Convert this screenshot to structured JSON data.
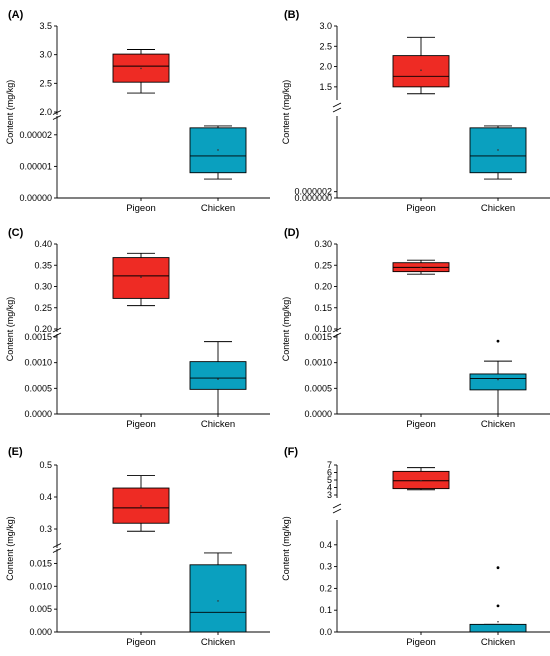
{
  "colors": {
    "pigeon": "#ee2b24",
    "chicken": "#0aa0bf",
    "axis": "#000000"
  },
  "chart_data": [
    {
      "panel": "(A)",
      "type": "box",
      "ylabel": "Content (mg/kg)",
      "axis_break": true,
      "categories": [
        "Pigeon",
        "Chicken"
      ],
      "upper": {
        "ylim": [
          2.0,
          3.5
        ],
        "ticks": [
          "2.0",
          "2.5",
          "3.0",
          "3.5"
        ]
      },
      "lower": {
        "ylim": [
          0,
          2.5e-05
        ],
        "ticks": [
          "0.00000",
          "0.00001",
          "0.00002"
        ]
      },
      "boxes": [
        {
          "category": "Pigeon",
          "segment": "upper",
          "min": 2.33,
          "q1": 2.52,
          "median": 2.8,
          "q3": 3.01,
          "max": 3.09,
          "mean": 2.76
        },
        {
          "category": "Chicken",
          "segment": "lower",
          "min": 6e-06,
          "q1": 8e-06,
          "median": 1.33e-05,
          "q3": 2.22e-05,
          "max": 2.28e-05,
          "mean": 1.52e-05
        }
      ]
    },
    {
      "panel": "(B)",
      "type": "box",
      "ylabel": "Content (mg/kg)",
      "axis_break": true,
      "categories": [
        "Pigeon",
        "Chicken"
      ],
      "upper": {
        "ylim": [
          1.25,
          3.0
        ],
        "ticks": [
          "1.5",
          "2.0",
          "2.5",
          "3.0"
        ]
      },
      "lower": {
        "ylim": [
          0,
          2.5e-05
        ],
        "ticks": [
          "0.000000",
          "0.000002"
        ]
      },
      "boxes": [
        {
          "category": "Pigeon",
          "segment": "upper",
          "min": 1.33,
          "q1": 1.5,
          "median": 1.76,
          "q3": 2.27,
          "max": 2.72,
          "mean": 1.91
        },
        {
          "category": "Chicken",
          "segment": "lower",
          "min": 6e-06,
          "q1": 8e-06,
          "median": 1.33e-05,
          "q3": 2.22e-05,
          "max": 2.28e-05,
          "mean": 1.52e-05
        }
      ]
    },
    {
      "panel": "(C)",
      "type": "box",
      "ylabel": "Content (mg/kg)",
      "axis_break": true,
      "categories": [
        "Pigeon",
        "Chicken"
      ],
      "upper": {
        "ylim": [
          0.2,
          0.4
        ],
        "ticks": [
          "0.20",
          "0.25",
          "0.30",
          "0.35",
          "0.40"
        ]
      },
      "lower": {
        "ylim": [
          0,
          0.0015
        ],
        "ticks": [
          "0.0000",
          "0.0005",
          "0.0010",
          "0.0015"
        ]
      },
      "boxes": [
        {
          "category": "Pigeon",
          "segment": "upper",
          "min": 0.255,
          "q1": 0.272,
          "median": 0.325,
          "q3": 0.368,
          "max": 0.378,
          "mean": 0.322
        },
        {
          "category": "Chicken",
          "segment": "lower",
          "min": 0.0,
          "q1": 0.00048,
          "median": 0.0007,
          "q3": 0.00102,
          "max": 0.00141,
          "mean": 0.00068
        }
      ]
    },
    {
      "panel": "(D)",
      "type": "box",
      "ylabel": "Content (mg/kg)",
      "axis_break": true,
      "categories": [
        "Pigeon",
        "Chicken"
      ],
      "upper": {
        "ylim": [
          0.1,
          0.3
        ],
        "ticks": [
          "0.10",
          "0.15",
          "0.20",
          "0.25",
          "0.30"
        ]
      },
      "lower": {
        "ylim": [
          0,
          0.0015
        ],
        "ticks": [
          "0.0000",
          "0.0005",
          "0.0010",
          "0.0015"
        ]
      },
      "boxes": [
        {
          "category": "Pigeon",
          "segment": "upper",
          "min": 0.229,
          "q1": 0.235,
          "median": 0.245,
          "q3": 0.256,
          "max": 0.262,
          "mean": 0.245
        },
        {
          "category": "Chicken",
          "segment": "lower",
          "min": 0.0,
          "q1": 0.00047,
          "median": 0.00069,
          "q3": 0.00078,
          "max": 0.00103,
          "mean": 0.00067,
          "outliers": [
            0.00142
          ]
        }
      ]
    },
    {
      "panel": "(E)",
      "type": "box",
      "ylabel": "Content (mg/kg)",
      "axis_break": true,
      "categories": [
        "Pigeon",
        "Chicken"
      ],
      "upper": {
        "ylim": [
          0.25,
          0.5
        ],
        "ticks": [
          "0.3",
          "0.4",
          "0.5"
        ]
      },
      "lower": {
        "ylim": [
          0,
          0.0175
        ],
        "ticks": [
          "0.000",
          "0.005",
          "0.010",
          "0.015"
        ]
      },
      "boxes": [
        {
          "category": "Pigeon",
          "segment": "upper",
          "min": 0.293,
          "q1": 0.318,
          "median": 0.366,
          "q3": 0.428,
          "max": 0.467,
          "mean": 0.372
        },
        {
          "category": "Chicken",
          "segment": "lower",
          "min": 0.0,
          "q1": 0.0,
          "median": 0.0043,
          "q3": 0.0147,
          "max": 0.0173,
          "mean": 0.0068
        }
      ]
    },
    {
      "panel": "(F)",
      "type": "box",
      "ylabel": "Content (mg/kg)",
      "axis_break": true,
      "categories": [
        "Pigeon",
        "Chicken"
      ],
      "upper": {
        "ylim": [
          3,
          7
        ],
        "ticks": [
          "3",
          "4",
          "5",
          "6",
          "7"
        ]
      },
      "lower": {
        "ylim": [
          0,
          0.5
        ],
        "ticks": [
          "0.0",
          "0.1",
          "0.2",
          "0.3",
          "0.4"
        ]
      },
      "boxes": [
        {
          "category": "Pigeon",
          "segment": "upper",
          "min": 3.7,
          "q1": 3.85,
          "median": 4.9,
          "q3": 6.15,
          "max": 6.65,
          "mean": 4.9
        },
        {
          "category": "Chicken",
          "segment": "lower",
          "min": 0.0,
          "q1": 0.0,
          "median": 0.0,
          "q3": 0.035,
          "max": 0.035,
          "mean": 0.047,
          "outliers": [
            0.12,
            0.295
          ]
        }
      ]
    }
  ]
}
